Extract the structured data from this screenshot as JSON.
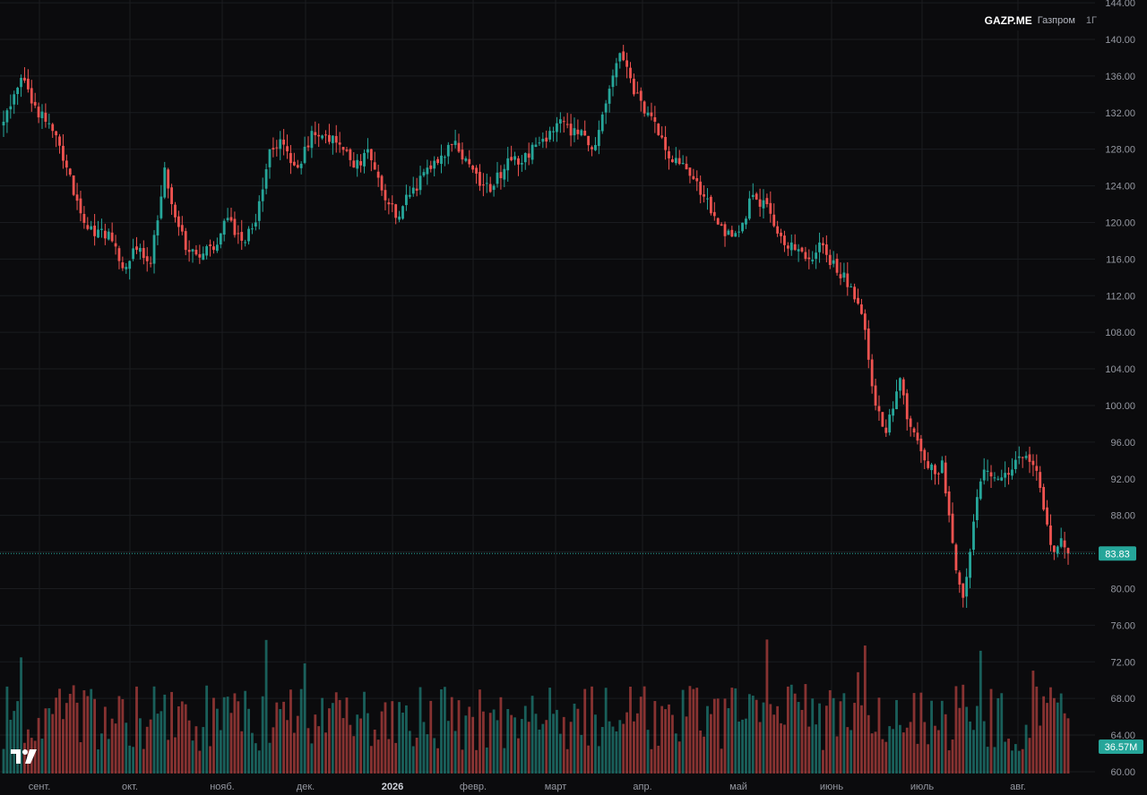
{
  "header": {
    "ticker": "GAZP.ME",
    "name": "Газпром",
    "timeframe": "1Г"
  },
  "colors": {
    "background": "#0b0b0d",
    "grid": "#1b1c20",
    "up": "#26a69a",
    "down": "#ef5350",
    "price_line": "#26a69a",
    "axis_text": "#9598a1"
  },
  "chart_data": {
    "type": "candlestick",
    "title": "",
    "x_ticks": [
      "сент.",
      "окт.",
      "нояб.",
      "дек.",
      "2026",
      "февр.",
      "март",
      "апр.",
      "май",
      "июнь",
      "июль",
      "авг."
    ],
    "y_ticks": [
      "144.00",
      "140.00",
      "136.00",
      "132.00",
      "128.00",
      "124.00",
      "120.00",
      "116.00",
      "112.00",
      "108.00",
      "104.00",
      "100.00",
      "96.00",
      "92.00",
      "88.00",
      "84.00",
      "80.00",
      "76.00",
      "72.00",
      "68.00",
      "64.00",
      "60.00"
    ],
    "ylim": [
      59.8,
      144.3
    ],
    "last_price": 83.83,
    "last_price_label": "83.83",
    "last_volume_label": "36.57M",
    "close_anchors": [
      [
        0,
        131
      ],
      [
        3,
        134
      ],
      [
        6,
        135.5
      ],
      [
        8,
        133
      ],
      [
        12,
        131
      ],
      [
        14,
        130
      ],
      [
        18,
        126
      ],
      [
        22,
        121
      ],
      [
        26,
        118.5
      ],
      [
        30,
        119
      ],
      [
        34,
        115
      ],
      [
        38,
        117
      ],
      [
        42,
        115.5
      ],
      [
        46,
        126
      ],
      [
        48,
        122
      ],
      [
        52,
        117
      ],
      [
        55,
        116.5
      ],
      [
        60,
        117
      ],
      [
        64,
        120.5
      ],
      [
        68,
        118
      ],
      [
        72,
        120
      ],
      [
        76,
        128
      ],
      [
        80,
        128.5
      ],
      [
        84,
        126
      ],
      [
        88,
        130
      ],
      [
        92,
        129.5
      ],
      [
        96,
        128.5
      ],
      [
        100,
        126
      ],
      [
        104,
        128
      ],
      [
        108,
        123.5
      ],
      [
        112,
        120.5
      ],
      [
        116,
        123
      ],
      [
        120,
        125.5
      ],
      [
        124,
        126.5
      ],
      [
        128,
        128.5
      ],
      [
        132,
        127
      ],
      [
        136,
        124
      ],
      [
        140,
        124
      ],
      [
        144,
        127
      ],
      [
        148,
        126.5
      ],
      [
        152,
        128.5
      ],
      [
        156,
        130
      ],
      [
        160,
        131
      ],
      [
        162,
        129.5
      ],
      [
        166,
        129.5
      ],
      [
        168,
        128
      ],
      [
        172,
        133
      ],
      [
        176,
        138.5
      ],
      [
        178,
        137
      ],
      [
        180,
        134
      ],
      [
        184,
        132
      ],
      [
        186,
        131
      ],
      [
        190,
        127
      ],
      [
        194,
        126.5
      ],
      [
        198,
        124.5
      ],
      [
        202,
        121
      ],
      [
        206,
        118.5
      ],
      [
        210,
        119
      ],
      [
        214,
        123
      ],
      [
        218,
        122
      ],
      [
        222,
        118.5
      ],
      [
        226,
        117
      ],
      [
        230,
        116
      ],
      [
        234,
        117.5
      ],
      [
        238,
        114.5
      ],
      [
        242,
        113
      ],
      [
        245,
        110
      ],
      [
        247,
        105
      ],
      [
        249,
        100
      ],
      [
        252,
        97
      ],
      [
        256,
        103
      ],
      [
        258,
        98.5
      ],
      [
        262,
        95
      ],
      [
        266,
        92.5
      ],
      [
        268,
        94
      ],
      [
        270,
        88
      ],
      [
        272,
        82
      ],
      [
        274,
        79
      ],
      [
        276,
        84
      ],
      [
        278,
        90
      ],
      [
        280,
        93
      ],
      [
        284,
        92
      ],
      [
        288,
        93
      ],
      [
        292,
        94.5
      ],
      [
        294,
        93.5
      ],
      [
        296,
        91
      ],
      [
        298,
        87
      ],
      [
        300,
        84
      ],
      [
        302,
        85.5
      ],
      [
        304,
        83.83
      ]
    ]
  }
}
